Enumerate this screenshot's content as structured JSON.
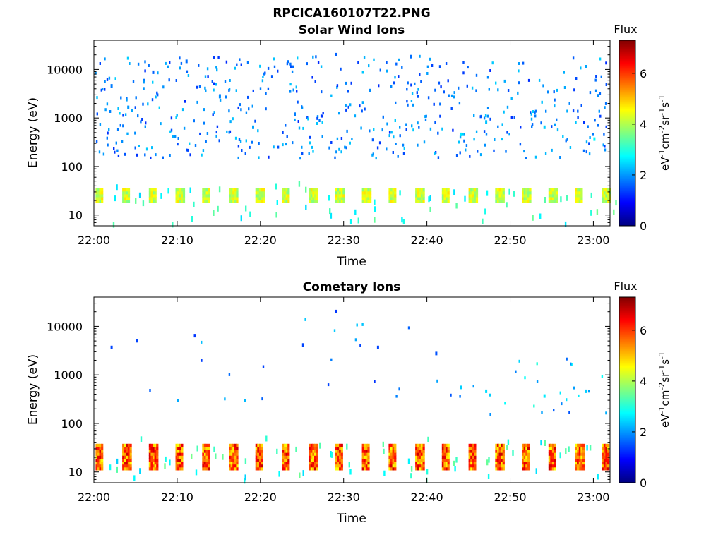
{
  "figure": {
    "title": "RPCICA160107T22.PNG"
  },
  "colormap": [
    "#000080",
    "#0000ff",
    "#0080ff",
    "#00ffff",
    "#80ff80",
    "#ffff00",
    "#ff8000",
    "#ff0000",
    "#800000"
  ],
  "chart_data": [
    {
      "type": "heatmap",
      "title": "Solar Wind Ions",
      "xlabel": "Time",
      "ylabel": "Energy (eV)",
      "y_scale": "log",
      "ylim": [
        6,
        40000
      ],
      "y_ticks": [
        10,
        100,
        1000,
        10000
      ],
      "y_ticklabels": [
        "10",
        "100",
        "1000",
        "10000"
      ],
      "xlim": [
        "22:00",
        "23:02"
      ],
      "x_ticks": [
        0,
        10,
        20,
        30,
        40,
        50,
        60
      ],
      "x_ticklabels": [
        "22:00",
        "22:10",
        "22:20",
        "22:30",
        "22:40",
        "22:50",
        "23:00"
      ],
      "colorbar": {
        "label": "Flux",
        "units": "eV-1cm-2sr-1s-1",
        "units_parts": [
          "eV",
          "-1",
          "cm",
          "-2",
          "sr",
          "-1",
          "s",
          "-1"
        ],
        "range": [
          0,
          7.3
        ],
        "ticks": [
          0,
          2,
          4,
          6
        ],
        "ticklabels": [
          "0",
          "2",
          "4",
          "6"
        ]
      },
      "low_energy_band": {
        "energy_range": [
          18,
          32
        ],
        "flux_range": [
          3.6,
          4.8
        ],
        "period_min": 3.2
      },
      "scattered_events": [
        {
          "time_min": 2,
          "energy_ev": 5000,
          "flux": 1.8
        },
        {
          "time_min": 4,
          "energy_ev": 1800,
          "flux": 2.0
        },
        {
          "time_min": 7,
          "energy_ev": 9500,
          "flux": 1.6
        },
        {
          "time_min": 11,
          "energy_ev": 16000,
          "flux": 1.7
        },
        {
          "time_min": 15,
          "energy_ev": 3000,
          "flux": 1.9
        },
        {
          "time_min": 19,
          "energy_ev": 700,
          "flux": 2.1
        },
        {
          "time_min": 24,
          "energy_ev": 1300,
          "flux": 1.8
        },
        {
          "time_min": 29,
          "energy_ev": 22000,
          "flux": 1.6
        },
        {
          "time_min": 33,
          "energy_ev": 4000,
          "flux": 1.9
        },
        {
          "time_min": 38,
          "energy_ev": 20000,
          "flux": 1.7
        },
        {
          "time_min": 44,
          "energy_ev": 500,
          "flux": 2.6
        },
        {
          "time_min": 47,
          "energy_ev": 900,
          "flux": 2.3
        },
        {
          "time_min": 54,
          "energy_ev": 700,
          "flux": 2.4
        },
        {
          "time_min": 60,
          "energy_ev": 400,
          "flux": 2.7
        }
      ]
    },
    {
      "type": "heatmap",
      "title": "Cometary Ions",
      "xlabel": "Time",
      "ylabel": "Energy (eV)",
      "y_scale": "log",
      "ylim": [
        6,
        40000
      ],
      "y_ticks": [
        10,
        100,
        1000,
        10000
      ],
      "y_ticklabels": [
        "10",
        "100",
        "1000",
        "10000"
      ],
      "xlim": [
        "22:00",
        "23:02"
      ],
      "x_ticks": [
        0,
        10,
        20,
        30,
        40,
        50,
        60
      ],
      "x_ticklabels": [
        "22:00",
        "22:10",
        "22:20",
        "22:30",
        "22:40",
        "22:50",
        "23:00"
      ],
      "colorbar": {
        "label": "Flux",
        "units": "eV-1cm-2sr-1s-1",
        "units_parts": [
          "eV",
          "-1",
          "cm",
          "-2",
          "sr",
          "-1",
          "s",
          "-1"
        ],
        "range": [
          0,
          7.3
        ],
        "ticks": [
          0,
          2,
          4,
          6
        ],
        "ticklabels": [
          "0",
          "2",
          "4",
          "6"
        ]
      },
      "low_energy_band": {
        "energy_range": [
          11,
          38
        ],
        "flux_range": [
          4.5,
          6.8
        ],
        "period_min": 3.2
      },
      "scattered_events": [
        {
          "time_min": 2,
          "energy_ev": 4000,
          "flux": 1.4
        },
        {
          "time_min": 5,
          "energy_ev": 5500,
          "flux": 1.4
        },
        {
          "time_min": 12,
          "energy_ev": 7000,
          "flux": 1.3
        },
        {
          "time_min": 25,
          "energy_ev": 4500,
          "flux": 1.4
        },
        {
          "time_min": 29,
          "energy_ev": 22000,
          "flux": 1.3
        },
        {
          "time_min": 34,
          "energy_ev": 4000,
          "flux": 1.4
        },
        {
          "time_min": 41,
          "energy_ev": 3000,
          "flux": 1.5
        },
        {
          "time_min": 44,
          "energy_ev": 600,
          "flux": 2.4
        },
        {
          "time_min": 47,
          "energy_ev": 500,
          "flux": 2.5
        },
        {
          "time_min": 54,
          "energy_ev": 400,
          "flux": 2.6
        },
        {
          "time_min": 59,
          "energy_ev": 500,
          "flux": 2.4
        }
      ]
    }
  ]
}
